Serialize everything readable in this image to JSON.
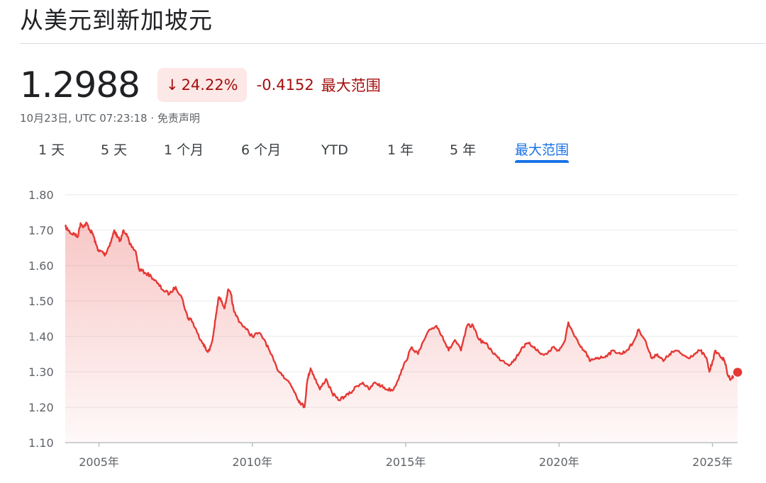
{
  "header": {
    "title": "从美元到新加坡元"
  },
  "quote": {
    "price": "1.2988",
    "change_arrow": "↓",
    "change_percent": "24.22%",
    "change_abs": "-0.4152",
    "range_label": "最大范围",
    "timestamp": "10月23日, UTC 07:23:18 · 免责声明"
  },
  "tabs": [
    {
      "label": "1 天",
      "active": false
    },
    {
      "label": "5 天",
      "active": false
    },
    {
      "label": "1 个月",
      "active": false
    },
    {
      "label": "6 个月",
      "active": false
    },
    {
      "label": "YTD",
      "active": false
    },
    {
      "label": "1 年",
      "active": false
    },
    {
      "label": "5 年",
      "active": false
    },
    {
      "label": "最大范围",
      "active": true
    }
  ],
  "colors": {
    "line": "#e53935",
    "negative_text": "#a50e0e",
    "negative_bg": "#fce8e6",
    "active_tab": "#1a73e8"
  },
  "chart_data": {
    "type": "area",
    "title": "",
    "xlabel": "",
    "ylabel": "",
    "ylim": [
      1.1,
      1.8
    ],
    "xlim": [
      2003.9,
      2025.82
    ],
    "y_ticks": [
      "1.80",
      "1.70",
      "1.60",
      "1.50",
      "1.40",
      "1.30",
      "1.20",
      "1.10"
    ],
    "x_ticks": [
      {
        "x": 2005,
        "label": "2005年"
      },
      {
        "x": 2010,
        "label": "2010年"
      },
      {
        "x": 2015,
        "label": "2015年"
      },
      {
        "x": 2020,
        "label": "2020年"
      },
      {
        "x": 2025,
        "label": "2025年"
      }
    ],
    "grid": true,
    "series": [
      {
        "x": [
          2003.9,
          2004.0,
          2004.1,
          2004.2,
          2004.3,
          2004.4,
          2004.5,
          2004.6,
          2004.7,
          2004.8,
          2004.9,
          2005.0,
          2005.1,
          2005.2,
          2005.3,
          2005.4,
          2005.5,
          2005.6,
          2005.7,
          2005.8,
          2005.9,
          2006.0,
          2006.2,
          2006.3,
          2006.5,
          2006.7,
          2006.9,
          2007.1,
          2007.3,
          2007.5,
          2007.7,
          2007.9,
          2008.0,
          2008.2,
          2008.4,
          2008.5,
          2008.6,
          2008.7,
          2008.8,
          2008.9,
          2009.0,
          2009.1,
          2009.2,
          2009.3,
          2009.4,
          2009.6,
          2009.8,
          2010.0,
          2010.2,
          2010.4,
          2010.6,
          2010.8,
          2011.0,
          2011.2,
          2011.4,
          2011.5,
          2011.6,
          2011.7,
          2011.8,
          2011.9,
          2012.0,
          2012.2,
          2012.4,
          2012.6,
          2012.8,
          2013.0,
          2013.2,
          2013.4,
          2013.6,
          2013.8,
          2014.0,
          2014.2,
          2014.4,
          2014.6,
          2014.8,
          2015.0,
          2015.2,
          2015.4,
          2015.6,
          2015.8,
          2016.0,
          2016.2,
          2016.4,
          2016.6,
          2016.8,
          2017.0,
          2017.2,
          2017.4,
          2017.6,
          2017.8,
          2018.0,
          2018.2,
          2018.4,
          2018.6,
          2018.8,
          2019.0,
          2019.2,
          2019.4,
          2019.6,
          2019.8,
          2020.0,
          2020.2,
          2020.3,
          2020.5,
          2020.7,
          2020.9,
          2021.0,
          2021.2,
          2021.4,
          2021.6,
          2021.8,
          2022.0,
          2022.2,
          2022.4,
          2022.6,
          2022.8,
          2023.0,
          2023.2,
          2023.4,
          2023.6,
          2023.8,
          2024.0,
          2024.2,
          2024.4,
          2024.6,
          2024.8,
          2024.9,
          2025.0,
          2025.1,
          2025.3,
          2025.4,
          2025.5,
          2025.6,
          2025.7,
          2025.82
        ],
        "values": [
          1.71,
          1.7,
          1.69,
          1.69,
          1.68,
          1.72,
          1.71,
          1.72,
          1.7,
          1.69,
          1.66,
          1.64,
          1.64,
          1.63,
          1.65,
          1.67,
          1.7,
          1.68,
          1.67,
          1.7,
          1.69,
          1.66,
          1.64,
          1.59,
          1.58,
          1.57,
          1.55,
          1.53,
          1.52,
          1.54,
          1.51,
          1.45,
          1.45,
          1.41,
          1.38,
          1.36,
          1.36,
          1.39,
          1.45,
          1.51,
          1.5,
          1.48,
          1.53,
          1.52,
          1.47,
          1.44,
          1.42,
          1.4,
          1.41,
          1.39,
          1.35,
          1.31,
          1.29,
          1.27,
          1.24,
          1.22,
          1.21,
          1.2,
          1.28,
          1.31,
          1.29,
          1.25,
          1.28,
          1.24,
          1.22,
          1.23,
          1.24,
          1.26,
          1.27,
          1.25,
          1.27,
          1.26,
          1.25,
          1.25,
          1.29,
          1.33,
          1.37,
          1.35,
          1.39,
          1.42,
          1.43,
          1.4,
          1.36,
          1.39,
          1.36,
          1.43,
          1.43,
          1.39,
          1.38,
          1.36,
          1.34,
          1.33,
          1.32,
          1.34,
          1.37,
          1.38,
          1.37,
          1.35,
          1.35,
          1.37,
          1.36,
          1.39,
          1.44,
          1.4,
          1.37,
          1.35,
          1.33,
          1.34,
          1.34,
          1.35,
          1.36,
          1.35,
          1.36,
          1.38,
          1.42,
          1.39,
          1.34,
          1.35,
          1.33,
          1.35,
          1.36,
          1.35,
          1.34,
          1.35,
          1.36,
          1.34,
          1.3,
          1.33,
          1.36,
          1.34,
          1.33,
          1.29,
          1.28,
          1.29,
          1.2988
        ]
      }
    ]
  }
}
